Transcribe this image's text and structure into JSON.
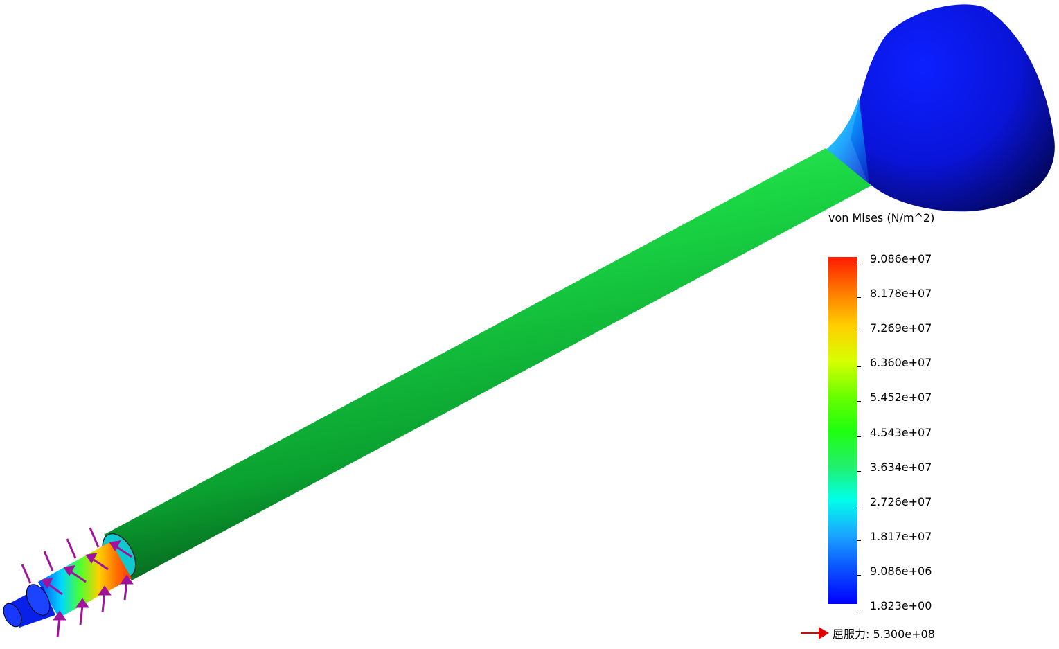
{
  "legend": {
    "title": "von Mises (N/m^2)",
    "ticks": [
      "9.086e+07",
      "8.178e+07",
      "7.269e+07",
      "6.360e+07",
      "5.452e+07",
      "4.543e+07",
      "3.634e+07",
      "2.726e+07",
      "1.817e+07",
      "9.086e+06",
      "1.823e+00"
    ],
    "yield_label": "屈服力: 5.300e+08",
    "colormap": [
      "#ff1a00",
      "#ff7a00",
      "#ffd000",
      "#d6ff00",
      "#6bff00",
      "#1fff10",
      "#22f06a",
      "#00ffea",
      "#1aa6ff",
      "#0a50ff",
      "#0000ff"
    ]
  },
  "colors": {
    "shaft_green": "#16c940",
    "head_blue": "#0814e0",
    "load_arrow": "#a0149a",
    "yield_marker": "#e00000"
  },
  "icons": {
    "load_arrows": "force-arrow-icon",
    "yield_marker": "red-arrow-icon"
  }
}
